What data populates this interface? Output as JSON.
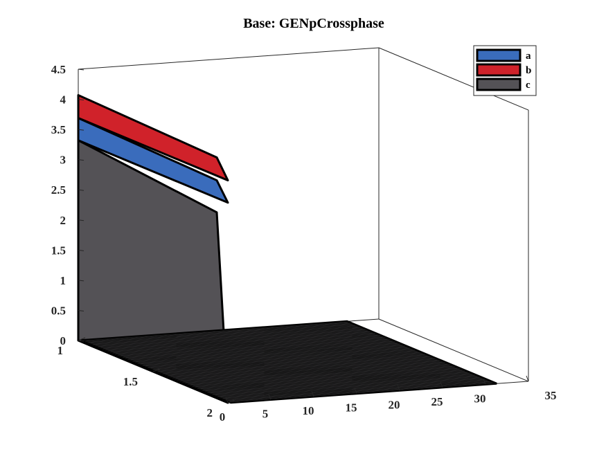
{
  "chart_data": {
    "type": "area",
    "title": "Base: GENpCrossphase",
    "x_ticks": [
      "0",
      "5",
      "10",
      "15",
      "20",
      "25",
      "30",
      "35"
    ],
    "y_ticks": [
      "1",
      "1.5",
      "2"
    ],
    "z_ticks": [
      "0",
      "0.5",
      "1",
      "1.5",
      "2",
      "2.5",
      "3",
      "3.5",
      "4",
      "4.5"
    ],
    "xlim": [
      0,
      35
    ],
    "ylim": [
      1,
      2
    ],
    "zlim": [
      0,
      4.5
    ],
    "grid": false,
    "legend_position": "top-right",
    "series": [
      {
        "name": "a",
        "color": "#3a6cbc",
        "values": [
          0.37,
          0.37,
          0,
          0,
          0,
          0,
          0,
          0,
          0,
          0,
          0,
          0,
          0,
          0,
          0,
          0,
          0,
          0,
          0,
          0,
          0,
          0,
          0,
          0,
          0,
          0,
          0,
          0,
          0,
          0,
          0,
          0
        ]
      },
      {
        "name": "b",
        "color": "#d0222a",
        "values": [
          0.38,
          0.38,
          0,
          0,
          0,
          0,
          0,
          0,
          0,
          0,
          0,
          0,
          0,
          0,
          0,
          0,
          0,
          0,
          0,
          0,
          0,
          0,
          0,
          0,
          0,
          0,
          0,
          0,
          0,
          0,
          0,
          0
        ]
      },
      {
        "name": "c",
        "color": "#545256",
        "values": [
          3.32,
          3.32,
          0,
          0,
          0,
          0,
          0,
          0,
          0,
          0,
          0,
          0,
          0,
          0,
          0,
          0,
          0,
          0,
          0,
          0,
          0,
          0,
          0,
          0,
          0,
          0,
          0,
          0,
          0,
          0,
          0,
          0
        ]
      }
    ],
    "x": [
      0,
      1,
      2,
      3,
      4,
      5,
      6,
      7,
      8,
      9,
      10,
      11,
      12,
      13,
      14,
      15,
      16,
      17,
      18,
      19,
      20,
      21,
      22,
      23,
      24,
      25,
      26,
      27,
      28,
      29,
      30,
      31
    ],
    "depth_range": [
      1,
      2
    ]
  }
}
